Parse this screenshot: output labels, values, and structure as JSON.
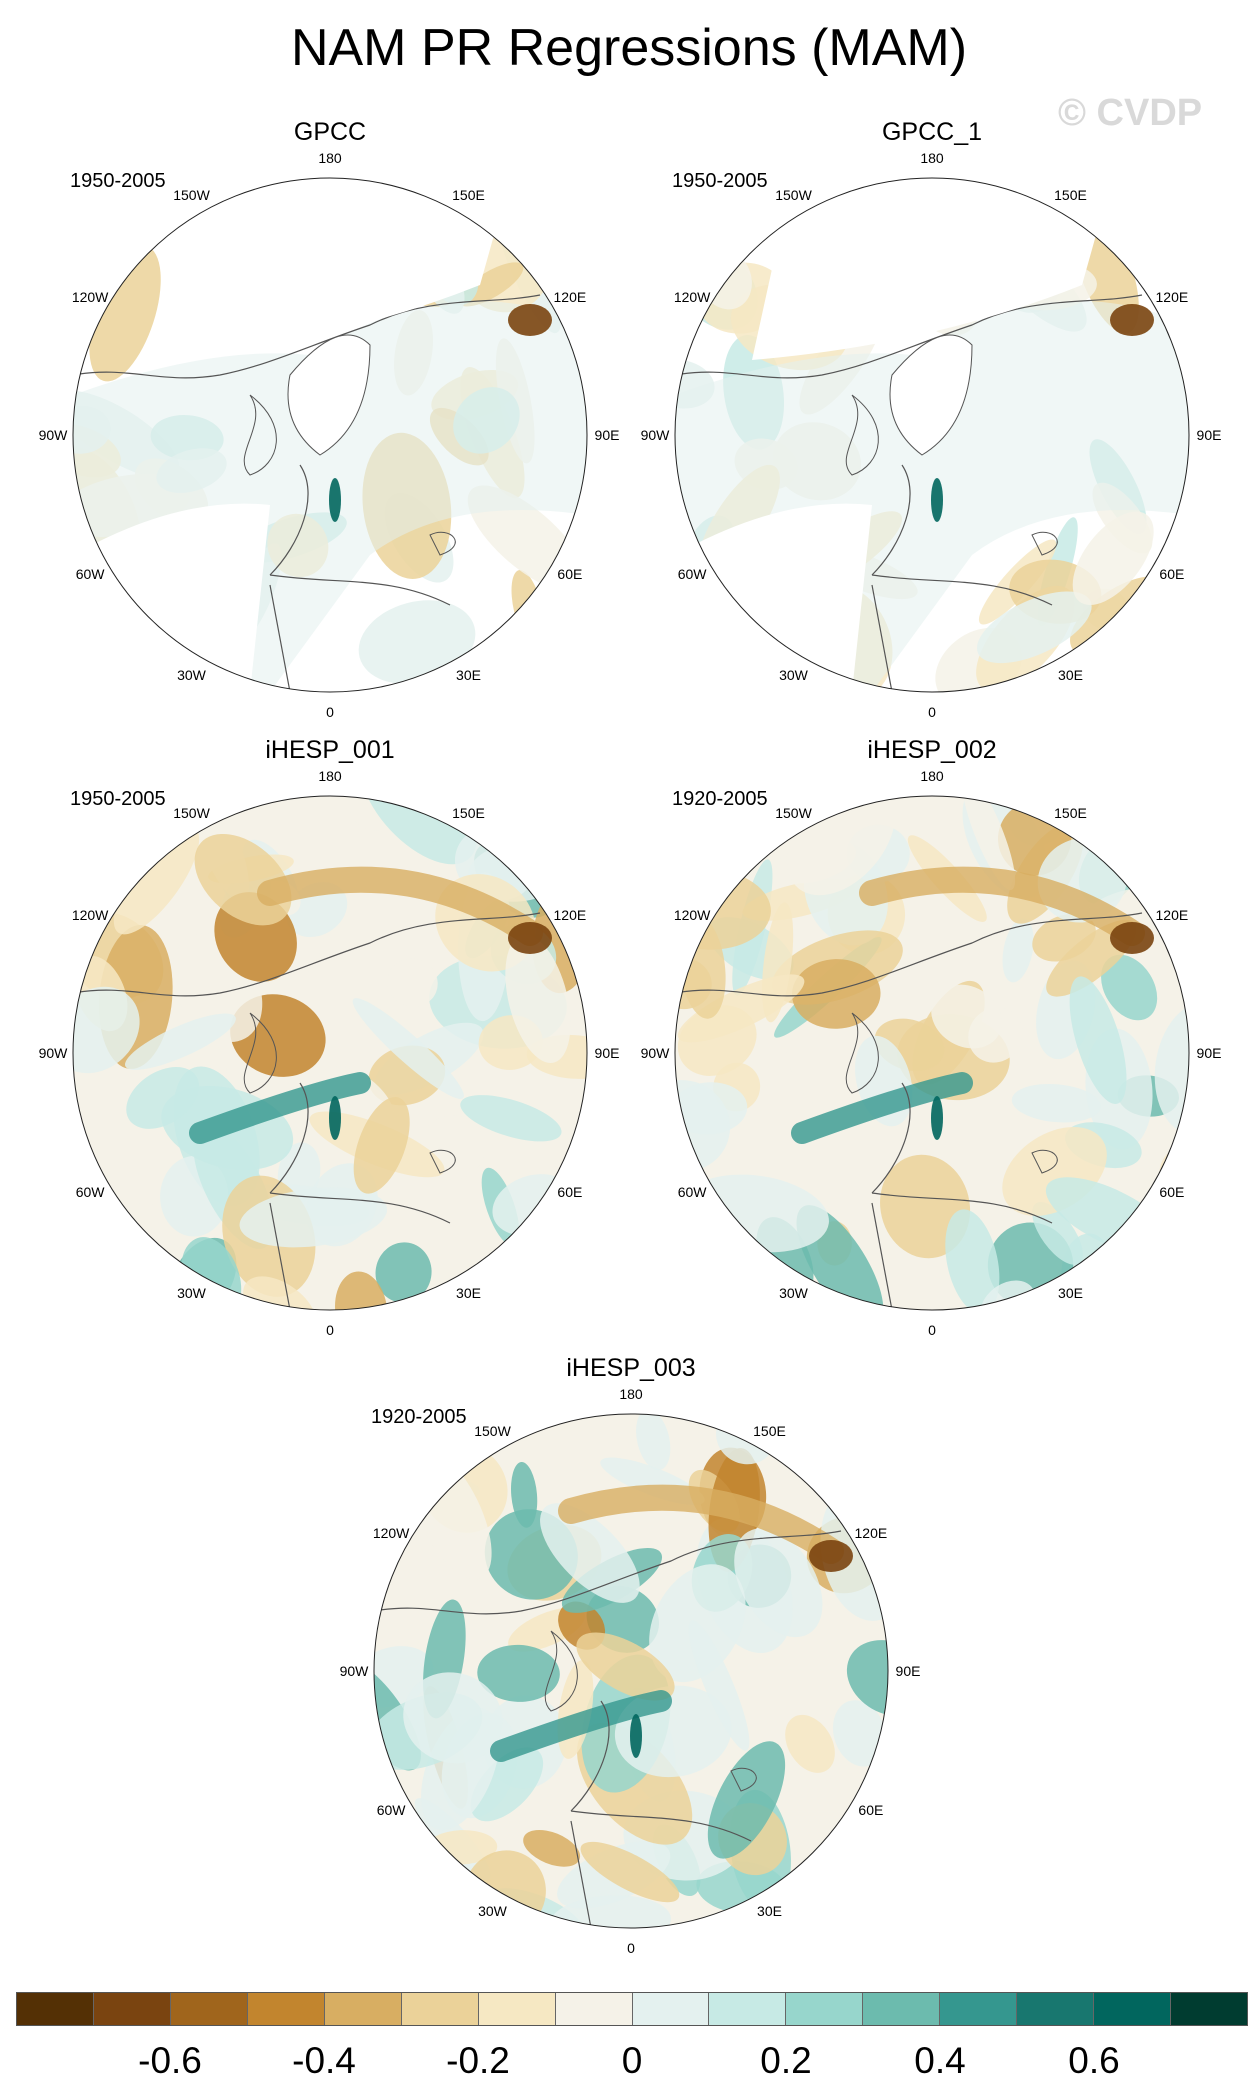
{
  "title": "NAM PR Regressions (MAM)",
  "watermark": "© CVDP",
  "panels": [
    {
      "name": "GPCC",
      "period": "1950-2005",
      "style": "obs"
    },
    {
      "name": "GPCC_1",
      "period": "1950-2005",
      "style": "obs"
    },
    {
      "name": "iHESP_001",
      "period": "1950-2005",
      "style": "model"
    },
    {
      "name": "iHESP_002",
      "period": "1920-2005",
      "style": "model"
    },
    {
      "name": "iHESP_003",
      "period": "1920-2005",
      "style": "model"
    }
  ],
  "longitude_labels": [
    "180",
    "150E",
    "120E",
    "90E",
    "60E",
    "30E",
    "0",
    "30W",
    "60W",
    "90W",
    "120W",
    "150W"
  ],
  "colorbar": {
    "colors": [
      "#543005",
      "#7a4410",
      "#a0651c",
      "#c2852e",
      "#d8ae62",
      "#ebd299",
      "#f6e8c3",
      "#f5f2e8",
      "#e4f1ef",
      "#c7eae5",
      "#97d6cc",
      "#6cbbae",
      "#35978f",
      "#18776f",
      "#01665e",
      "#003c30"
    ],
    "tick_labels": [
      "-0.6",
      "-0.4",
      "-0.2",
      "0",
      "0.2",
      "0.4",
      "0.6"
    ]
  },
  "chart_data": {
    "type": "heatmap",
    "projection": "north polar stereographic",
    "variable": "precipitation regression onto NAM, MAM",
    "color_levels": [
      -0.7,
      -0.6,
      -0.5,
      -0.4,
      -0.3,
      -0.2,
      -0.1,
      0,
      0.1,
      0.2,
      0.3,
      0.4,
      0.5,
      0.6,
      0.7
    ],
    "colorbar_ticks": [
      -0.6,
      -0.4,
      -0.2,
      0,
      0.2,
      0.4,
      0.6
    ],
    "panels": [
      "GPCC",
      "GPCC_1",
      "iHESP_001",
      "iHESP_002",
      "iHESP_003"
    ]
  }
}
